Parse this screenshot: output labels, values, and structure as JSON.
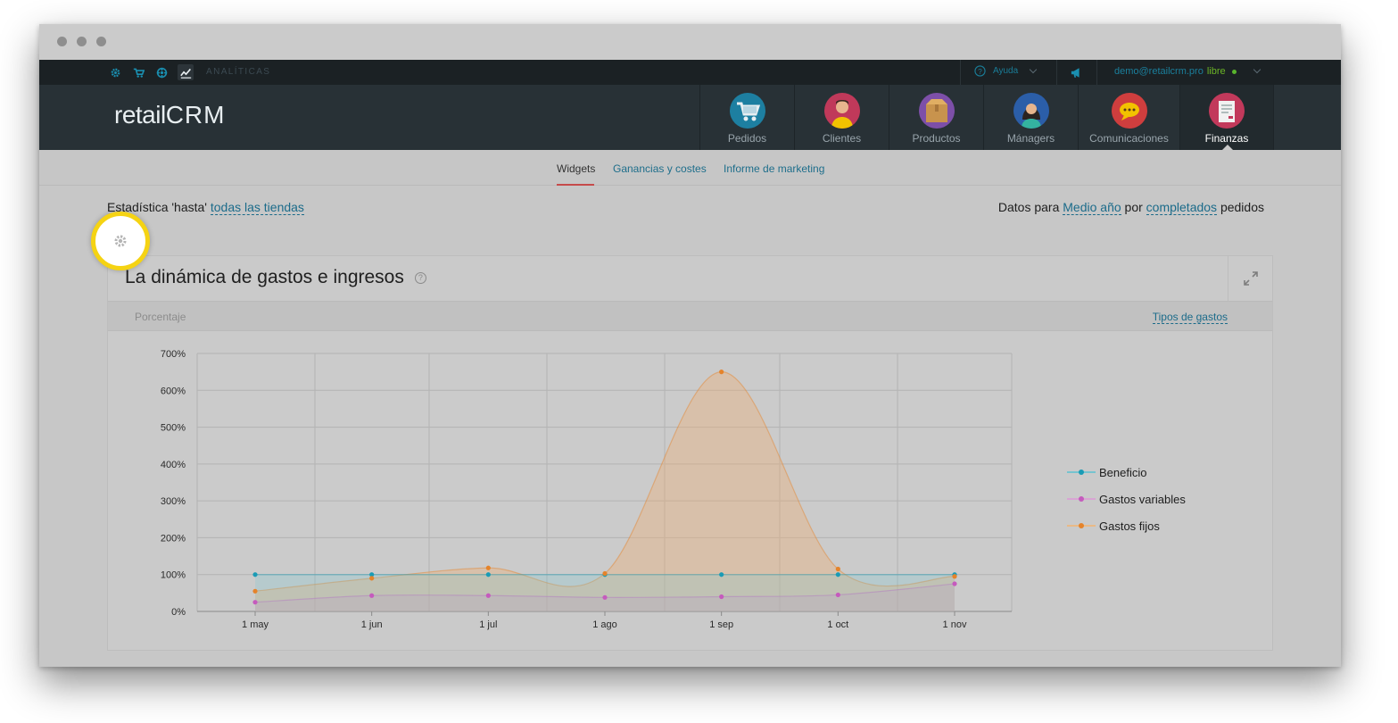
{
  "topbar": {
    "section": "ANALÍTICAS",
    "help": "Ayuda",
    "user_email": "demo@retailcrm.pro",
    "user_plan": "libre"
  },
  "brand": {
    "logo_text": "retail",
    "logo_crm": "CRM"
  },
  "nav": [
    {
      "label": "Pedidos"
    },
    {
      "label": "Clientes"
    },
    {
      "label": "Productos"
    },
    {
      "label": "Mánagers"
    },
    {
      "label": "Comunicaciones"
    },
    {
      "label": "Finanzas"
    }
  ],
  "subnav": {
    "widgets": "Widgets",
    "ganancias": "Ganancias y costes",
    "informe": "Informe de marketing"
  },
  "filters": {
    "stat_prefix": "Estadística 'hasta'",
    "stores_link": "todas las tiendas",
    "data_prefix": "Datos para",
    "period_link": "Medio año",
    "por": "por",
    "status_link": "completados",
    "suffix": "pedidos"
  },
  "widget": {
    "title": "La dinámica de gastos e ingresos",
    "mode": "Porcentaje",
    "types_link": "Tipos de gastos"
  },
  "colors": {
    "beneficio": "#1a9bb5",
    "gastos_variables": "#c55bbd",
    "gastos_fijos": "#e5832a"
  },
  "chart_data": {
    "type": "area",
    "categories": [
      "1 may",
      "1 jun",
      "1 jul",
      "1 ago",
      "1 sep",
      "1 oct",
      "1 nov"
    ],
    "yticks": [
      "0%",
      "100%",
      "200%",
      "300%",
      "400%",
      "500%",
      "600%",
      "700%"
    ],
    "ylim": [
      0,
      700
    ],
    "series": [
      {
        "name": "Beneficio",
        "values": [
          100,
          100,
          100,
          100,
          100,
          100,
          100
        ]
      },
      {
        "name": "Gastos variables",
        "values": [
          25,
          43,
          43,
          38,
          40,
          45,
          75
        ]
      },
      {
        "name": "Gastos fijos",
        "values": [
          55,
          90,
          118,
          103,
          650,
          115,
          95
        ]
      }
    ],
    "legend": "right",
    "grid": true
  }
}
